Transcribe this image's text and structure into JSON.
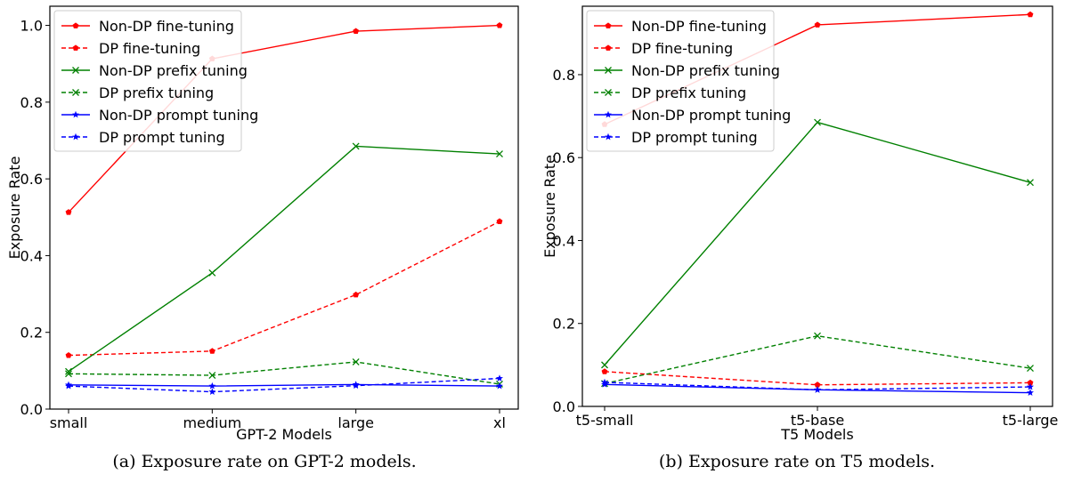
{
  "chart_data": [
    {
      "type": "line",
      "xlabel": "GPT-2 Models",
      "ylabel": "Exposure Rate",
      "categories": [
        "small",
        "medium",
        "large",
        "xl"
      ],
      "ylim": [
        0,
        1.05
      ],
      "yticks": [
        0.0,
        0.2,
        0.4,
        0.6,
        0.8,
        1.0
      ],
      "ytick_labels": [
        "0.0",
        "0.2",
        "0.4",
        "0.6",
        "0.8",
        "1.0"
      ],
      "legend_position": "top-left",
      "caption": "(a)  Exposure rate on GPT-2 models.",
      "series": [
        {
          "name": "Non-DP fine-tuning",
          "color": "#ff0000",
          "dash": "solid",
          "marker": "pentagon",
          "values": [
            0.513,
            0.913,
            0.985,
            1.0
          ]
        },
        {
          "name": "DP fine-tuning",
          "color": "#ff0000",
          "dash": "dashed",
          "marker": "pentagon",
          "values": [
            0.14,
            0.151,
            0.298,
            0.489
          ]
        },
        {
          "name": "Non-DP prefix tuning",
          "color": "#008000",
          "dash": "solid",
          "marker": "x",
          "values": [
            0.098,
            0.355,
            0.685,
            0.665
          ]
        },
        {
          "name": "DP prefix tuning",
          "color": "#008000",
          "dash": "dashed",
          "marker": "x",
          "values": [
            0.092,
            0.088,
            0.123,
            0.065
          ]
        },
        {
          "name": "Non-DP prompt tuning",
          "color": "#0000ff",
          "dash": "solid",
          "marker": "star",
          "values": [
            0.063,
            0.06,
            0.064,
            0.06
          ]
        },
        {
          "name": "DP prompt tuning",
          "color": "#0000ff",
          "dash": "dashed",
          "marker": "star",
          "values": [
            0.06,
            0.045,
            0.061,
            0.08
          ]
        }
      ]
    },
    {
      "type": "line",
      "xlabel": "T5 Models",
      "ylabel": "Exposure Rate",
      "categories": [
        "t5-small",
        "t5-base",
        "t5-large"
      ],
      "ylim": [
        0,
        0.965
      ],
      "yticks": [
        0.0,
        0.2,
        0.4,
        0.6,
        0.8
      ],
      "ytick_labels": [
        "0.0",
        "0.2",
        "0.4",
        "0.6",
        "0.8"
      ],
      "legend_position": "top-left",
      "caption": "(b)  Exposure rate on T5 models.",
      "series": [
        {
          "name": "Non-DP fine-tuning",
          "color": "#ff0000",
          "dash": "solid",
          "marker": "pentagon",
          "values": [
            0.68,
            0.92,
            0.945
          ]
        },
        {
          "name": "DP fine-tuning",
          "color": "#ff0000",
          "dash": "dashed",
          "marker": "pentagon",
          "values": [
            0.084,
            0.052,
            0.057
          ]
        },
        {
          "name": "Non-DP prefix tuning",
          "color": "#008000",
          "dash": "solid",
          "marker": "x",
          "values": [
            0.1,
            0.685,
            0.54
          ]
        },
        {
          "name": "DP prefix tuning",
          "color": "#008000",
          "dash": "dashed",
          "marker": "x",
          "values": [
            0.055,
            0.17,
            0.092
          ]
        },
        {
          "name": "Non-DP prompt tuning",
          "color": "#0000ff",
          "dash": "solid",
          "marker": "star",
          "values": [
            0.053,
            0.04,
            0.033
          ]
        },
        {
          "name": "DP prompt tuning",
          "color": "#0000ff",
          "dash": "dashed",
          "marker": "star",
          "values": [
            0.058,
            0.04,
            0.047
          ]
        }
      ]
    }
  ]
}
